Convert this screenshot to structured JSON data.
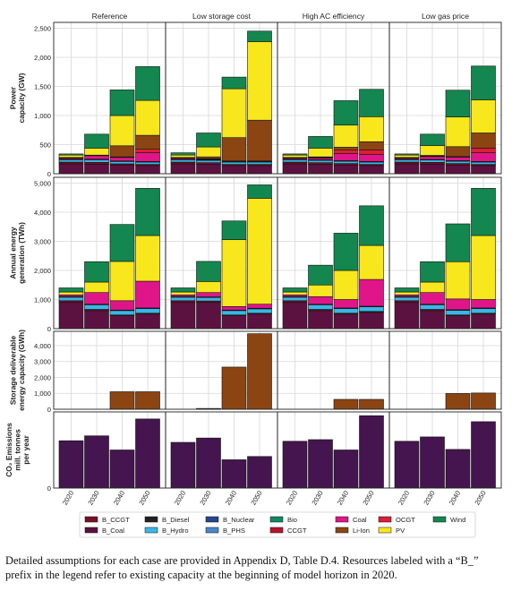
{
  "chart_data": {
    "type": "bar",
    "stacked": true,
    "panel_titles": [
      "Reference",
      "Low storage cost",
      "High AC efficiency",
      "Low gas price"
    ],
    "categories": [
      "2020",
      "2030",
      "2040",
      "2050"
    ],
    "grid": true,
    "legend_position": "bottom",
    "legend": [
      {
        "name": "B_CCGT",
        "color": "#7a1024"
      },
      {
        "name": "B_Coal",
        "color": "#5c1240"
      },
      {
        "name": "B_Diesel",
        "color": "#222222"
      },
      {
        "name": "B_Hydro",
        "color": "#39b7e6"
      },
      {
        "name": "B_Nuclear",
        "color": "#24468f"
      },
      {
        "name": "B_PHS",
        "color": "#4a86c8"
      },
      {
        "name": "Bio",
        "color": "#0e8a5f"
      },
      {
        "name": "CCGT",
        "color": "#b8142c"
      },
      {
        "name": "Coal",
        "color": "#e0158a"
      },
      {
        "name": "Li-Ion",
        "color": "#8b4513"
      },
      {
        "name": "OCGT",
        "color": "#dd1e37"
      },
      {
        "name": "PV",
        "color": "#f7e71c"
      },
      {
        "name": "Wind",
        "color": "#13874f"
      }
    ],
    "rows": [
      {
        "ylabel": "Power\ncapacity (GW)",
        "ylim": [
          0,
          2600
        ],
        "yticks": [
          0,
          500,
          1000,
          1500,
          2000,
          2500
        ],
        "ytick_labels": [
          "0",
          "500",
          "1,000",
          "1,500",
          "2,000",
          "2,500"
        ],
        "stack_order": [
          "B_Coal",
          "B_CCGT",
          "B_Hydro",
          "B_PHS",
          "Coal",
          "OCGT",
          "Li-Ion",
          "PV",
          "Wind"
        ],
        "panels": [
          {
            "B_Coal": [
              170,
              165,
              145,
              140
            ],
            "B_CCGT": [
              30,
              30,
              25,
              20
            ],
            "B_Hydro": [
              40,
              45,
              40,
              40
            ],
            "B_PHS": [
              10,
              10,
              10,
              10
            ],
            "Coal": [
              20,
              60,
              60,
              150
            ],
            "OCGT": [
              10,
              10,
              10,
              60
            ],
            "Li-Ion": [
              0,
              0,
              190,
              240
            ],
            "PV": [
              40,
              120,
              520,
              600
            ],
            "Wind": [
              20,
              240,
              440,
              580
            ]
          },
          {
            "B_Coal": [
              170,
              165,
              140,
              140
            ],
            "B_CCGT": [
              30,
              25,
              20,
              20
            ],
            "B_Hydro": [
              40,
              40,
              40,
              40
            ],
            "B_PHS": [
              10,
              10,
              10,
              10
            ],
            "Coal": [
              20,
              10,
              10,
              10
            ],
            "OCGT": [
              10,
              10,
              0,
              0
            ],
            "Li-Ion": [
              0,
              30,
              400,
              700
            ],
            "PV": [
              40,
              170,
              840,
              1350
            ],
            "Wind": [
              40,
              240,
              200,
              180
            ]
          },
          {
            "B_Coal": [
              170,
              160,
              150,
              140
            ],
            "B_CCGT": [
              30,
              30,
              25,
              20
            ],
            "B_Hydro": [
              40,
              40,
              40,
              40
            ],
            "B_PHS": [
              10,
              10,
              10,
              10
            ],
            "Coal": [
              20,
              30,
              120,
              120
            ],
            "OCGT": [
              10,
              10,
              60,
              80
            ],
            "Li-Ion": [
              0,
              10,
              50,
              140
            ],
            "PV": [
              40,
              150,
              380,
              430
            ],
            "Wind": [
              20,
              200,
              420,
              470
            ]
          },
          {
            "B_Coal": [
              170,
              165,
              150,
              140
            ],
            "B_CCGT": [
              30,
              30,
              25,
              20
            ],
            "B_Hydro": [
              40,
              40,
              40,
              40
            ],
            "B_PHS": [
              10,
              10,
              10,
              10
            ],
            "Coal": [
              20,
              50,
              60,
              150
            ],
            "OCGT": [
              10,
              10,
              10,
              80
            ],
            "Li-Ion": [
              0,
              10,
              170,
              260
            ],
            "PV": [
              40,
              170,
              510,
              570
            ],
            "Wind": [
              20,
              195,
              460,
              580
            ]
          }
        ]
      },
      {
        "ylabel": "Annual energy\ngeneration (TWh)",
        "ylim": [
          0,
          5200
        ],
        "yticks": [
          0,
          1000,
          2000,
          3000,
          4000,
          5000
        ],
        "ytick_labels": [
          "0",
          "1,000",
          "2,000",
          "3,000",
          "4,000",
          "5,000"
        ],
        "stack_order": [
          "B_Coal",
          "B_CCGT",
          "B_Hydro",
          "B_PHS",
          "Coal",
          "PV",
          "Wind"
        ],
        "panels": [
          {
            "B_Coal": [
              900,
              620,
              440,
              500
            ],
            "B_CCGT": [
              60,
              40,
              30,
              30
            ],
            "B_Hydro": [
              120,
              160,
              150,
              160
            ],
            "B_PHS": [
              20,
              20,
              20,
              20
            ],
            "Coal": [
              60,
              400,
              320,
              920
            ],
            "PV": [
              100,
              360,
              1350,
              1570
            ],
            "Wind": [
              140,
              700,
              1270,
              1620
            ]
          },
          {
            "B_Coal": [
              900,
              900,
              440,
              500
            ],
            "B_CCGT": [
              60,
              50,
              30,
              30
            ],
            "B_Hydro": [
              120,
              120,
              150,
              150
            ],
            "B_PHS": [
              20,
              20,
              20,
              20
            ],
            "Coal": [
              60,
              150,
              120,
              140
            ],
            "PV": [
              100,
              380,
              2300,
              3640
            ],
            "Wind": [
              140,
              690,
              640,
              460
            ]
          },
          {
            "B_Coal": [
              900,
              620,
              500,
              560
            ],
            "B_CCGT": [
              60,
              40,
              30,
              30
            ],
            "B_Hydro": [
              120,
              160,
              160,
              160
            ],
            "B_PHS": [
              20,
              20,
              20,
              20
            ],
            "Coal": [
              60,
              260,
              290,
              920
            ],
            "PV": [
              100,
              400,
              1000,
              1170
            ],
            "Wind": [
              140,
              680,
              1280,
              1360
            ]
          },
          {
            "B_Coal": [
              900,
              620,
              440,
              500
            ],
            "B_CCGT": [
              60,
              40,
              30,
              30
            ],
            "B_Hydro": [
              120,
              160,
              160,
              160
            ],
            "B_PHS": [
              20,
              20,
              20,
              20
            ],
            "Coal": [
              60,
              400,
              370,
              290
            ],
            "PV": [
              100,
              360,
              1280,
              2200
            ],
            "Wind": [
              140,
              700,
              1300,
              1620
            ]
          }
        ]
      },
      {
        "ylabel": "Storage deliverable\nenergy capacity (GWh)",
        "ylim": [
          0,
          4900
        ],
        "yticks": [
          0,
          1000,
          2000,
          3000,
          4000
        ],
        "ytick_labels": [
          "0",
          "1,000",
          "2,000",
          "3,000",
          "4,000"
        ],
        "stack_order": [
          "Li-Ion"
        ],
        "panels": [
          {
            "Li-Ion": [
              0,
              0,
              1100,
              1100
            ]
          },
          {
            "Li-Ion": [
              0,
              50,
              2650,
              4750
            ]
          },
          {
            "Li-Ion": [
              0,
              0,
              620,
              620
            ]
          },
          {
            "Li-Ion": [
              0,
              0,
              990,
              1020
            ]
          }
        ]
      },
      {
        "ylabel": "CO₂ Emissions\nmill. tonnes\nper year",
        "ylim": [
          0,
          1400
        ],
        "yticks": [
          0
        ],
        "ytick_labels": [
          "0"
        ],
        "stack_order": [
          "Total"
        ],
        "single_color": "#44154e",
        "panels": [
          {
            "Total": [
              870,
              960,
              700,
              1270
            ]
          },
          {
            "Total": [
              840,
              920,
              520,
              580
            ]
          },
          {
            "Total": [
              860,
              890,
              700,
              1330
            ]
          },
          {
            "Total": [
              860,
              940,
              710,
              1220
            ]
          }
        ]
      }
    ]
  },
  "caption": "Detailed assumptions for each case are provided in Appendix D, Table D.4. Resources labeled with a “B_” prefix in the legend refer to existing capacity at the beginning of model horizon in 2020."
}
